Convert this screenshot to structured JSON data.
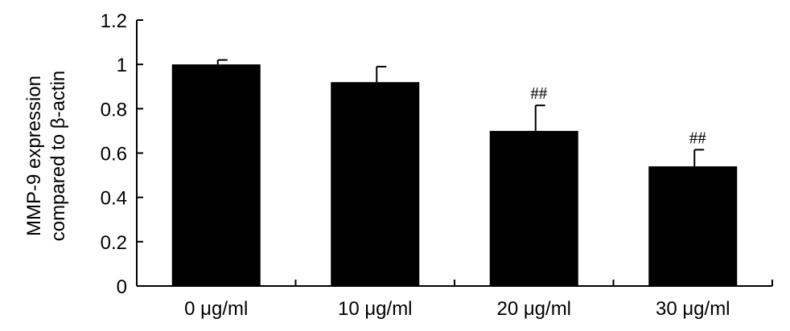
{
  "chart_data": {
    "type": "bar",
    "categories": [
      "0 μg/ml",
      "10 μg/ml",
      "20 μg/ml",
      "30 μg/ml"
    ],
    "values": [
      1.0,
      0.92,
      0.7,
      0.54
    ],
    "error_upper": [
      0.02,
      0.07,
      0.115,
      0.075
    ],
    "annotations": [
      "",
      "",
      "##",
      "##"
    ],
    "ylabel_lines": [
      "MMP-9 expression",
      "compared to β-actin"
    ],
    "xlabel": "",
    "title": "",
    "ylim": [
      0,
      1.2
    ],
    "yticks": [
      0,
      0.2,
      0.4,
      0.6,
      0.8,
      1,
      1.2
    ],
    "ytick_labels": [
      "0",
      "0.2",
      "0.4",
      "0.6",
      "0.8",
      "1",
      "1.2"
    ],
    "grid": false,
    "bar_color": "#000000"
  }
}
